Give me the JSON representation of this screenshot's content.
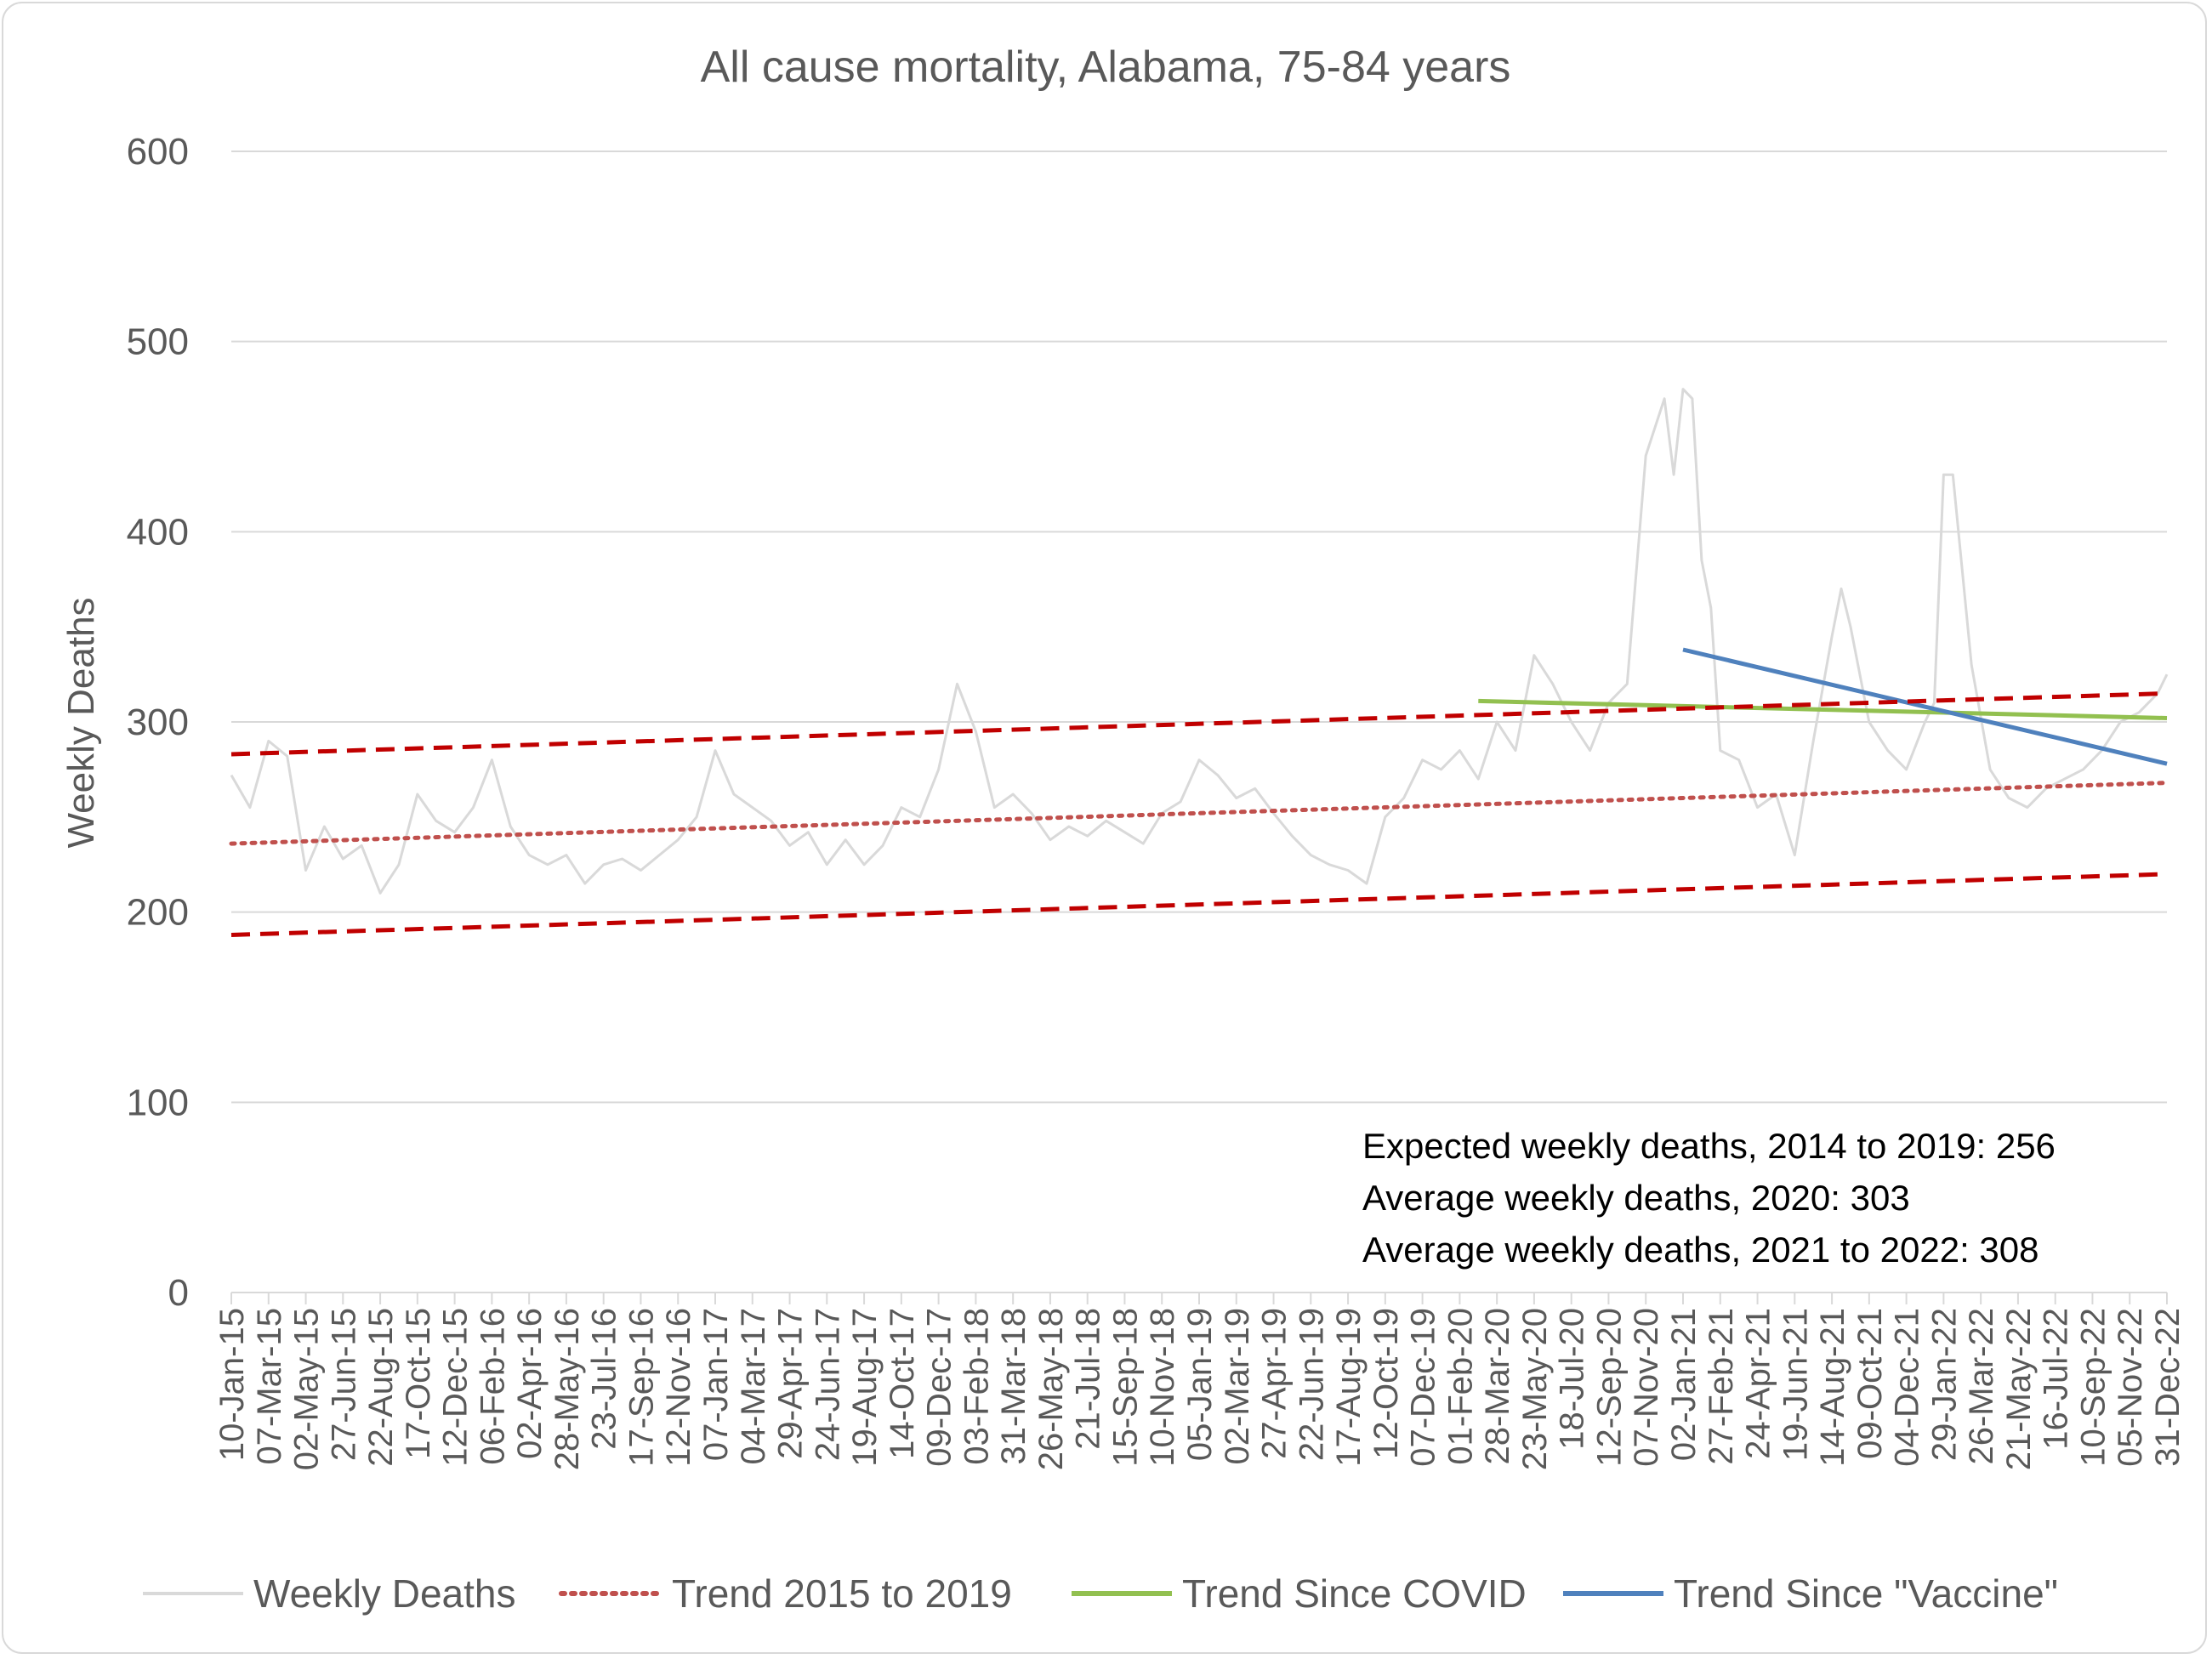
{
  "chart_data": {
    "type": "line",
    "title": "All cause mortality, Alabama, 75-84 years",
    "ylabel": "Weekly Deaths",
    "ylim": [
      0,
      600
    ],
    "yticks": [
      "0",
      "100",
      "200",
      "300",
      "400",
      "500",
      "600"
    ],
    "grid": true,
    "legend_position": "bottom",
    "x_range": [
      "2015-01-10",
      "2022-12-31"
    ],
    "xtick_labels": [
      "10-Jan-15",
      "07-Mar-15",
      "02-May-15",
      "27-Jun-15",
      "22-Aug-15",
      "17-Oct-15",
      "12-Dec-15",
      "06-Feb-16",
      "02-Apr-16",
      "28-May-16",
      "23-Jul-16",
      "17-Sep-16",
      "12-Nov-16",
      "07-Jan-17",
      "04-Mar-17",
      "29-Apr-17",
      "24-Jun-17",
      "19-Aug-17",
      "14-Oct-17",
      "09-Dec-17",
      "03-Feb-18",
      "31-Mar-18",
      "26-May-18",
      "21-Jul-18",
      "15-Sep-18",
      "10-Nov-18",
      "05-Jan-19",
      "02-Mar-19",
      "27-Apr-19",
      "22-Jun-19",
      "17-Aug-19",
      "12-Oct-19",
      "07-Dec-19",
      "01-Feb-20",
      "28-Mar-20",
      "23-May-20",
      "18-Jul-20",
      "12-Sep-20",
      "07-Nov-20",
      "02-Jan-21",
      "27-Feb-21",
      "24-Apr-21",
      "19-Jun-21",
      "14-Aug-21",
      "09-Oct-21",
      "04-Dec-21",
      "29-Jan-22",
      "26-Mar-22",
      "21-May-22",
      "16-Jul-22",
      "10-Sep-22",
      "05-Nov-22",
      "31-Dec-22"
    ],
    "series": [
      {
        "name": "Weekly Deaths",
        "color": "#d9d9d9",
        "style": "solid",
        "x": [
          "2015-01-10",
          "2015-02-07",
          "2015-03-07",
          "2015-04-04",
          "2015-05-02",
          "2015-05-30",
          "2015-06-27",
          "2015-07-25",
          "2015-08-22",
          "2015-09-19",
          "2015-10-17",
          "2015-11-14",
          "2015-12-12",
          "2016-01-09",
          "2016-02-06",
          "2016-03-05",
          "2016-04-02",
          "2016-04-30",
          "2016-05-28",
          "2016-06-25",
          "2016-07-23",
          "2016-08-20",
          "2016-09-17",
          "2016-10-15",
          "2016-11-12",
          "2016-12-10",
          "2017-01-07",
          "2017-02-04",
          "2017-03-04",
          "2017-04-01",
          "2017-04-29",
          "2017-05-27",
          "2017-06-24",
          "2017-07-22",
          "2017-08-19",
          "2017-09-16",
          "2017-10-14",
          "2017-11-11",
          "2017-12-09",
          "2018-01-06",
          "2018-02-03",
          "2018-03-03",
          "2018-03-31",
          "2018-04-28",
          "2018-05-26",
          "2018-06-23",
          "2018-07-21",
          "2018-08-18",
          "2018-09-15",
          "2018-10-13",
          "2018-11-10",
          "2018-12-08",
          "2019-01-05",
          "2019-02-02",
          "2019-03-02",
          "2019-03-30",
          "2019-04-27",
          "2019-05-25",
          "2019-06-22",
          "2019-07-20",
          "2019-08-17",
          "2019-09-14",
          "2019-10-12",
          "2019-11-09",
          "2019-12-07",
          "2020-01-04",
          "2020-02-01",
          "2020-02-29",
          "2020-03-28",
          "2020-04-25",
          "2020-05-23",
          "2020-06-20",
          "2020-07-18",
          "2020-08-15",
          "2020-09-12",
          "2020-10-10",
          "2020-11-07",
          "2020-12-05",
          "2020-12-19",
          "2021-01-02",
          "2021-01-16",
          "2021-01-30",
          "2021-02-13",
          "2021-02-27",
          "2021-03-27",
          "2021-04-24",
          "2021-05-22",
          "2021-06-19",
          "2021-07-17",
          "2021-08-14",
          "2021-08-28",
          "2021-09-11",
          "2021-10-09",
          "2021-11-06",
          "2021-12-04",
          "2022-01-01",
          "2022-01-15",
          "2022-01-29",
          "2022-02-12",
          "2022-03-12",
          "2022-04-09",
          "2022-05-07",
          "2022-06-04",
          "2022-07-02",
          "2022-07-30",
          "2022-08-27",
          "2022-09-24",
          "2022-10-22",
          "2022-11-19",
          "2022-12-17",
          "2022-12-31"
        ],
        "values": [
          272,
          255,
          290,
          282,
          222,
          245,
          228,
          235,
          210,
          225,
          262,
          248,
          242,
          255,
          280,
          245,
          230,
          225,
          230,
          215,
          225,
          228,
          222,
          230,
          238,
          250,
          285,
          262,
          255,
          248,
          235,
          242,
          225,
          238,
          225,
          235,
          255,
          250,
          275,
          320,
          295,
          255,
          262,
          252,
          238,
          245,
          240,
          248,
          242,
          236,
          252,
          258,
          280,
          272,
          260,
          265,
          252,
          240,
          230,
          225,
          222,
          215,
          250,
          260,
          280,
          275,
          285,
          270,
          300,
          285,
          335,
          320,
          300,
          285,
          310,
          320,
          440,
          470,
          430,
          475,
          470,
          385,
          360,
          285,
          280,
          255,
          262,
          230,
          290,
          345,
          370,
          350,
          300,
          285,
          275,
          300,
          310,
          430,
          430,
          330,
          275,
          260,
          255,
          265,
          270,
          275,
          285,
          300,
          305,
          315,
          325
        ]
      },
      {
        "name": "Trend 2015 to 2019",
        "color": "#c0504d",
        "style": "dotted",
        "x": [
          "2015-01-10",
          "2022-12-31"
        ],
        "values": [
          236,
          268
        ]
      },
      {
        "name": "Trend Since COVID",
        "color": "#92c050",
        "style": "solid",
        "x": [
          "2020-02-29",
          "2022-12-31"
        ],
        "values": [
          311,
          302
        ]
      },
      {
        "name": "Trend Since \"Vaccine\"",
        "color": "#4f81bd",
        "style": "solid",
        "x": [
          "2021-01-02",
          "2022-12-31"
        ],
        "values": [
          338,
          278
        ]
      }
    ],
    "bands": [
      {
        "color": "#c00000",
        "style": "dashed",
        "x": [
          "2015-01-10",
          "2022-12-31"
        ],
        "values": [
          283,
          315
        ]
      },
      {
        "color": "#c00000",
        "style": "dashed",
        "x": [
          "2015-01-10",
          "2022-12-31"
        ],
        "values": [
          188,
          220
        ]
      }
    ],
    "annotations": [
      "Expected weekly deaths, 2014 to 2019: 256",
      "Average weekly deaths, 2020: 303",
      "Average weekly deaths, 2021 to 2022: 308"
    ]
  }
}
